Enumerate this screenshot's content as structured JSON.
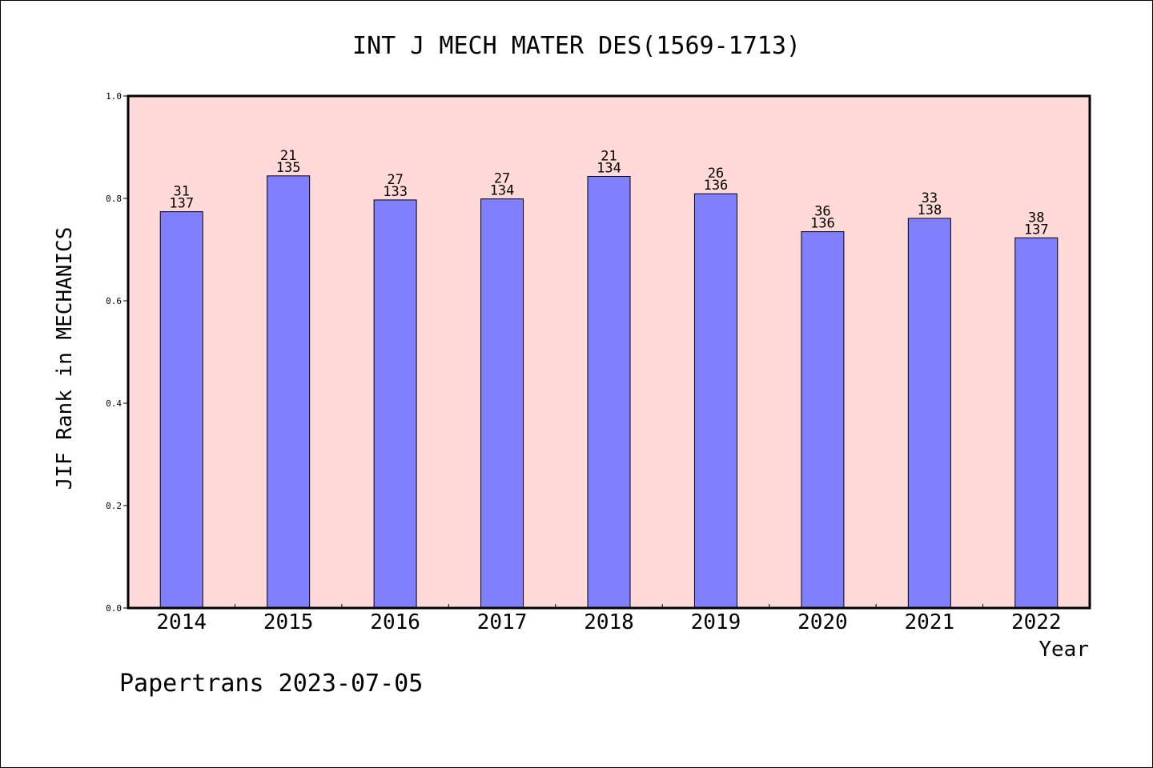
{
  "chart_data": {
    "type": "bar",
    "title": "INT J MECH MATER DES(1569-1713)",
    "xlabel": "Year",
    "ylabel": "JIF Rank in MECHANICS",
    "ylim": [
      0.0,
      1.0
    ],
    "yticks": [
      "0.0",
      "0.2",
      "0.4",
      "0.6",
      "0.8",
      "1.0"
    ],
    "categories": [
      "2014",
      "2015",
      "2016",
      "2017",
      "2018",
      "2019",
      "2020",
      "2021",
      "2022"
    ],
    "values": [
      0.774,
      0.844,
      0.797,
      0.799,
      0.843,
      0.809,
      0.735,
      0.761,
      0.723
    ],
    "rank_labels": [
      "31",
      "21",
      "27",
      "27",
      "21",
      "26",
      "36",
      "33",
      "38"
    ],
    "total_labels": [
      "137",
      "135",
      "133",
      "134",
      "134",
      "136",
      "136",
      "138",
      "137"
    ],
    "colors": {
      "plot_bg": "#ffdad8",
      "bar": "#8080ff",
      "axis": "#000000"
    },
    "grid": false,
    "footer": "Papertrans 2023-07-05"
  }
}
